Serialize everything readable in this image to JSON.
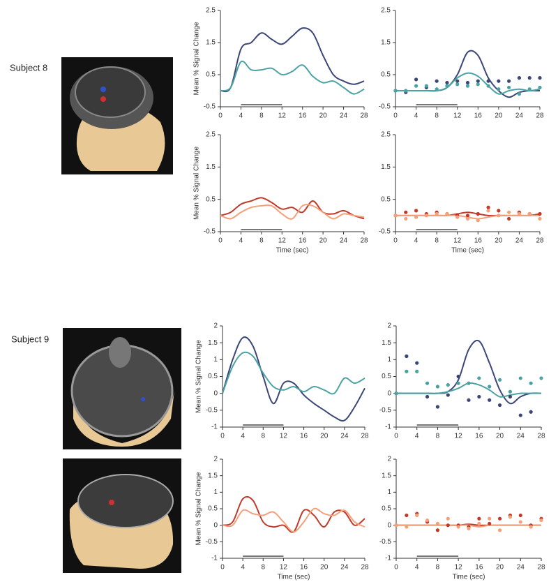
{
  "subjects": [
    "Subject 8",
    "Subject 9"
  ],
  "chart_data": [
    {
      "type": "line",
      "ylabel": "Mean % Signal Change",
      "x": [
        0,
        2,
        4,
        6,
        8,
        10,
        12,
        14,
        16,
        18,
        20,
        22,
        24,
        26,
        28
      ],
      "xlim": [
        0,
        28
      ],
      "xticks": [
        0,
        4,
        8,
        12,
        16,
        20,
        24,
        28
      ],
      "ylim": [
        -0.5,
        2.5
      ],
      "yticks": [
        -0.5,
        0.5,
        1.5,
        2.5
      ],
      "stimulus": [
        4,
        12
      ],
      "series": [
        {
          "mode": "line",
          "color": "#3b4677",
          "values": [
            0,
            0.1,
            1.3,
            1.5,
            1.8,
            1.6,
            1.45,
            1.7,
            1.95,
            1.8,
            1.1,
            0.5,
            0.3,
            0.2,
            0.3
          ]
        },
        {
          "mode": "line",
          "color": "#4aa3a2",
          "values": [
            0,
            0.1,
            0.9,
            0.65,
            0.65,
            0.7,
            0.5,
            0.6,
            0.8,
            0.45,
            0.25,
            0.3,
            0.1,
            -0.1,
            0.05
          ]
        }
      ]
    },
    {
      "type": "line",
      "x": [
        0,
        2,
        4,
        6,
        8,
        10,
        12,
        14,
        16,
        18,
        20,
        22,
        24,
        26,
        28
      ],
      "xlim": [
        0,
        28
      ],
      "xticks": [
        0,
        4,
        8,
        12,
        16,
        20,
        24,
        28
      ],
      "ylim": [
        -0.5,
        2.5
      ],
      "yticks": [
        -0.5,
        0.5,
        1.5,
        2.5
      ],
      "stimulus": [
        4,
        12
      ],
      "series": [
        {
          "mode": "line",
          "color": "#3b4677",
          "values": [
            0,
            0,
            0,
            0,
            0,
            0.1,
            0.5,
            1.2,
            1.1,
            0.4,
            0,
            -0.2,
            -0.05,
            0,
            0
          ]
        },
        {
          "mode": "line",
          "color": "#4aa3a2",
          "values": [
            0,
            0,
            0,
            0,
            0,
            0.1,
            0.4,
            0.55,
            0.45,
            0.15,
            -0.1,
            0,
            0.05,
            0,
            0.05
          ]
        },
        {
          "mode": "dots",
          "color": "#3b4677",
          "values": [
            0,
            -0.05,
            0.35,
            0.1,
            0.3,
            0.25,
            0.3,
            0.25,
            0.3,
            0.3,
            0.3,
            0.3,
            0.4,
            0.4,
            0.4
          ]
        },
        {
          "mode": "dots",
          "color": "#4aa3a2",
          "values": [
            0,
            0,
            0.15,
            0.15,
            0.05,
            0.15,
            0.2,
            0.15,
            0.2,
            0.15,
            0.05,
            0.1,
            -0.1,
            0.05,
            0.1
          ]
        }
      ]
    },
    {
      "type": "line",
      "ylabel": "Mean % Signal Change",
      "xlabel": "Time (sec)",
      "x": [
        0,
        2,
        4,
        6,
        8,
        10,
        12,
        14,
        16,
        18,
        20,
        22,
        24,
        26,
        28
      ],
      "xlim": [
        0,
        28
      ],
      "xticks": [
        0,
        4,
        8,
        12,
        16,
        20,
        24,
        28
      ],
      "ylim": [
        -0.5,
        2.5
      ],
      "yticks": [
        -0.5,
        0.5,
        1.5,
        2.5
      ],
      "stimulus": [
        4,
        12
      ],
      "series": [
        {
          "mode": "line",
          "color": "#c0392b",
          "values": [
            0,
            0.1,
            0.35,
            0.45,
            0.55,
            0.4,
            0.2,
            0.25,
            0.1,
            0.45,
            0.1,
            0.05,
            0.15,
            0,
            -0.1
          ]
        },
        {
          "mode": "line",
          "color": "#f4a07a",
          "values": [
            0,
            -0.1,
            0.1,
            0.25,
            0.3,
            0.3,
            0.05,
            -0.1,
            0.3,
            0.3,
            0.1,
            -0.1,
            0.05,
            0,
            -0.05
          ]
        }
      ]
    },
    {
      "type": "line",
      "xlabel": "Time (sec)",
      "x": [
        0,
        2,
        4,
        6,
        8,
        10,
        12,
        14,
        16,
        18,
        20,
        22,
        24,
        26,
        28
      ],
      "xlim": [
        0,
        28
      ],
      "xticks": [
        0,
        4,
        8,
        12,
        16,
        20,
        24,
        28
      ],
      "ylim": [
        -0.5,
        2.5
      ],
      "yticks": [
        -0.5,
        0.5,
        1.5,
        2.5
      ],
      "stimulus": [
        4,
        12
      ],
      "series": [
        {
          "mode": "line",
          "color": "#c0392b",
          "values": [
            0,
            0,
            0,
            0,
            0,
            0,
            0.05,
            0.1,
            0.05,
            0,
            0,
            0,
            0,
            0,
            0.05
          ]
        },
        {
          "mode": "line",
          "color": "#f4a07a",
          "values": [
            0,
            0,
            0,
            0,
            0,
            0,
            0,
            -0.05,
            -0.1,
            -0.05,
            0,
            0,
            0,
            0,
            0
          ]
        },
        {
          "mode": "dots",
          "color": "#c0392b",
          "values": [
            0,
            0.1,
            0.15,
            0.05,
            0.1,
            0.05,
            0,
            0,
            0.05,
            0.25,
            0.15,
            -0.1,
            0.1,
            0.05,
            0.05
          ]
        },
        {
          "mode": "dots",
          "color": "#f4a07a",
          "values": [
            0,
            -0.1,
            -0.05,
            0,
            0.05,
            0.05,
            -0.05,
            -0.1,
            -0.15,
            0.15,
            0,
            0.1,
            0.05,
            0.05,
            -0.1
          ]
        }
      ]
    },
    {
      "type": "line",
      "ylabel": "Mean % Signal Change",
      "x": [
        0,
        2,
        4,
        6,
        8,
        10,
        12,
        14,
        16,
        18,
        20,
        22,
        24,
        26,
        28
      ],
      "xlim": [
        0,
        28
      ],
      "xticks": [
        0,
        4,
        8,
        12,
        16,
        20,
        24,
        28
      ],
      "ylim": [
        -1,
        2
      ],
      "yticks": [
        -1,
        -0.5,
        0,
        0.5,
        1,
        1.5,
        2
      ],
      "stimulus": [
        4,
        12
      ],
      "series": [
        {
          "mode": "line",
          "color": "#3b4677",
          "values": [
            0,
            1.0,
            1.65,
            1.4,
            0.5,
            -0.3,
            0.3,
            0.3,
            -0.05,
            -0.3,
            -0.5,
            -0.7,
            -0.8,
            -0.4,
            0.15
          ]
        },
        {
          "mode": "line",
          "color": "#4aa3a2",
          "values": [
            0,
            0.8,
            1.2,
            1.1,
            0.6,
            0.2,
            0.1,
            0.2,
            0.05,
            0.2,
            0.1,
            0,
            0.45,
            0.3,
            0.45
          ]
        }
      ]
    },
    {
      "type": "line",
      "x": [
        0,
        2,
        4,
        6,
        8,
        10,
        12,
        14,
        16,
        18,
        20,
        22,
        24,
        26,
        28
      ],
      "xlim": [
        0,
        28
      ],
      "xticks": [
        0,
        4,
        8,
        12,
        16,
        20,
        24,
        28
      ],
      "ylim": [
        -1,
        2
      ],
      "yticks": [
        -1,
        -0.5,
        0,
        0.5,
        1,
        1.5,
        2
      ],
      "stimulus": [
        4,
        12
      ],
      "series": [
        {
          "mode": "line",
          "color": "#3b4677",
          "values": [
            0,
            0,
            0,
            0,
            0,
            0.05,
            0.4,
            1.3,
            1.55,
            0.9,
            0.1,
            -0.3,
            -0.1,
            0,
            0
          ]
        },
        {
          "mode": "line",
          "color": "#4aa3a2",
          "values": [
            0,
            0,
            0,
            0,
            0,
            0.05,
            0.15,
            0.3,
            0.25,
            0.1,
            -0.1,
            -0.05,
            0,
            0,
            0
          ]
        },
        {
          "mode": "dots",
          "color": "#3b4677",
          "values": [
            0,
            1.1,
            0.9,
            -0.1,
            -0.4,
            -0.05,
            0.5,
            -0.2,
            -0.1,
            -0.2,
            -0.35,
            -0.1,
            -0.65,
            -0.55,
            null
          ]
        },
        {
          "mode": "dots",
          "color": "#4aa3a2",
          "values": [
            0,
            0.65,
            0.65,
            0.3,
            0.2,
            0.25,
            0.3,
            0.3,
            0.45,
            0.2,
            0.4,
            0.05,
            0.45,
            0.3,
            0.45
          ]
        }
      ]
    },
    {
      "type": "line",
      "ylabel": "Mean % Signal Change",
      "xlabel": "Time (sec)",
      "x": [
        0,
        2,
        4,
        6,
        8,
        10,
        12,
        14,
        16,
        18,
        20,
        22,
        24,
        26,
        28
      ],
      "xlim": [
        0,
        28
      ],
      "xticks": [
        0,
        4,
        8,
        12,
        16,
        20,
        24,
        28
      ],
      "ylim": [
        -1,
        2
      ],
      "yticks": [
        -1,
        -0.5,
        0,
        0.5,
        1,
        1.5,
        2
      ],
      "stimulus": [
        4,
        12
      ],
      "series": [
        {
          "mode": "line",
          "color": "#c0392b",
          "values": [
            0,
            0.1,
            0.8,
            0.75,
            0.1,
            -0.05,
            0,
            -0.2,
            0.45,
            0.3,
            -0.05,
            0.4,
            0.4,
            0,
            0.2
          ]
        },
        {
          "mode": "line",
          "color": "#f4a07a",
          "values": [
            0,
            0,
            0.45,
            0.35,
            0.3,
            0.4,
            0.1,
            -0.2,
            0.1,
            0.5,
            0.35,
            0.3,
            0.45,
            0.1,
            -0.05
          ]
        }
      ]
    },
    {
      "type": "line",
      "xlabel": "Time (sec)",
      "x": [
        0,
        2,
        4,
        6,
        8,
        10,
        12,
        14,
        16,
        18,
        20,
        22,
        24,
        26,
        28
      ],
      "xlim": [
        0,
        28
      ],
      "xticks": [
        0,
        4,
        8,
        12,
        16,
        20,
        24,
        28
      ],
      "ylim": [
        -1,
        2
      ],
      "yticks": [
        -1,
        -0.5,
        0,
        0.5,
        1,
        1.5,
        2
      ],
      "stimulus": [
        4,
        12
      ],
      "series": [
        {
          "mode": "line",
          "color": "#c0392b",
          "values": [
            0,
            0,
            0,
            0,
            0,
            0,
            0,
            0.03,
            0,
            0,
            0,
            0,
            0,
            0,
            0
          ]
        },
        {
          "mode": "line",
          "color": "#f4a07a",
          "values": [
            0,
            0,
            0,
            0,
            0,
            0,
            0,
            0,
            -0.05,
            0,
            0,
            0,
            0,
            0,
            0
          ]
        },
        {
          "mode": "dots",
          "color": "#c0392b",
          "values": [
            0,
            0.3,
            0.35,
            0.1,
            -0.15,
            0,
            0,
            -0.05,
            0.2,
            0.05,
            0.2,
            0.3,
            0.3,
            0,
            0.2
          ]
        },
        {
          "mode": "dots",
          "color": "#f4a07a",
          "values": [
            0,
            -0.05,
            0.3,
            0.15,
            0.05,
            0.2,
            -0.05,
            -0.1,
            0.05,
            0.2,
            -0.15,
            0.25,
            0.1,
            -0.05,
            0.15
          ]
        }
      ]
    }
  ]
}
